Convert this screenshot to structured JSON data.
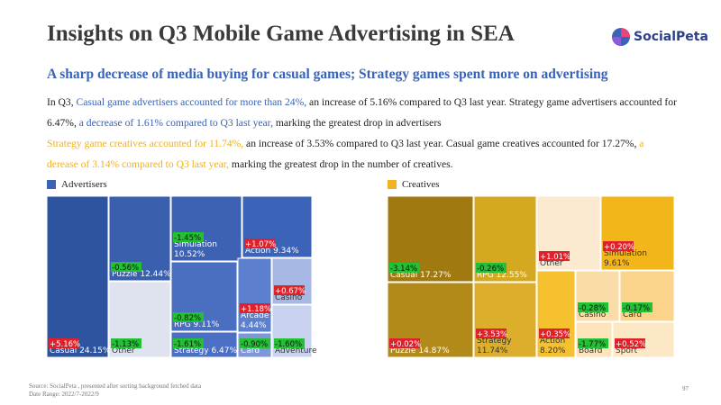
{
  "header": {
    "title": "Insights on Q3 Mobile Game Advertising in SEA",
    "logo": "SocialPeta"
  },
  "subtitle": "A sharp decrease of media buying for casual games; Strategy games spent more on advertising",
  "paragraph": [
    {
      "text": "In Q3, ",
      "color": "#222222"
    },
    {
      "text": "Casual game advertisers accounted for more than 24%,",
      "color": "#3a63b6"
    },
    {
      "text": " an increase of 5.16% compared to Q3 last year. Strategy game advertisers accounted for 6.47%, ",
      "color": "#222222"
    },
    {
      "text": "a decrease of 1.61% compared to Q3 last year,",
      "color": "#3a63b6"
    },
    {
      "text": " marking the greatest drop in advertisers",
      "color": "#222222"
    },
    {
      "text": "Strategy game creatives accounted for 11.74%,",
      "color": "#f0b21e"
    },
    {
      "text": " an increase of 3.53% compared to Q3 last year. Casual game creatives accounted for 17.27%, ",
      "color": "#222222"
    },
    {
      "text": "a derease of 3.14% compared to Q3 last year,",
      "color": "#f0b21e"
    },
    {
      "text": " marking the greatest drop in the number of creatives.",
      "color": "#222222"
    }
  ],
  "chart_data": [
    {
      "type": "treemap",
      "legend": "Advertisers",
      "color": "#3a63b6",
      "categories": [
        "Casual",
        "Puzzle",
        "Other",
        "Simulation",
        "Action",
        "RPG",
        "Strategy",
        "Arcade",
        "Casino",
        "Card",
        "Adventure"
      ],
      "values": [
        24.15,
        12.44,
        11.3,
        10.52,
        9.34,
        9.11,
        6.47,
        4.44,
        3.3,
        2.2,
        3.7
      ],
      "value_labels": [
        "24.15%",
        "12.44%",
        null,
        "10.52%",
        "9.34%",
        "9.11%",
        "6.47%",
        "4.44%",
        null,
        null,
        null
      ],
      "changes": [
        5.16,
        -0.56,
        -1.13,
        -1.45,
        1.07,
        -0.82,
        -1.61,
        1.18,
        0.67,
        -0.9,
        -1.6
      ],
      "change_labels": [
        "+5.16%",
        "-0.56%",
        "-1.13%",
        "-1.45%",
        "+1.07%",
        "-0.82%",
        "-1.61%",
        "+1.18%",
        "+0.67%",
        "-0.90%",
        "-1.60%"
      ],
      "colors": [
        "#2e54a0",
        "#3a5fae",
        "#dfe3f0",
        "#3d62b3",
        "#3b63b8",
        "#4a6fc0",
        "#4a6fc4",
        "#5c7fcf",
        "#a7b8e4",
        "#7d97d8",
        "#c9d3ef"
      ]
    },
    {
      "type": "treemap",
      "legend": "Creatives",
      "color": "#f0b21e",
      "categories": [
        "Casual",
        "Puzzle",
        "RPG",
        "Strategy",
        "Other",
        "Simulation",
        "Action",
        "Casino",
        "Card",
        "Board",
        "Sport"
      ],
      "values": [
        17.27,
        14.87,
        12.55,
        11.74,
        10.0,
        9.61,
        8.2,
        4.5,
        5.7,
        2.7,
        4.6
      ],
      "value_labels": [
        "17.27%",
        "14.87%",
        "12.55%",
        "11.74%",
        null,
        "9.61%",
        "8.20%",
        null,
        null,
        null,
        null
      ],
      "changes": [
        -3.14,
        0.02,
        -0.26,
        3.53,
        1.01,
        0.2,
        0.35,
        -0.28,
        -0.17,
        -1.77,
        0.52
      ],
      "change_labels": [
        "-3.14%",
        "+0.02%",
        "-0.26%",
        "+3.53%",
        "+1.01%",
        "+0.20%",
        "+0.35%",
        "-0.28%",
        "-0.17%",
        "-1.77%",
        "+0.52%"
      ],
      "colors": [
        "#a07a10",
        "#b18a1a",
        "#d4a820",
        "#dcae2b",
        "#fbe9d0",
        "#f2b61a",
        "#f6c12e",
        "#f9dca7",
        "#fbd48b",
        "#fde4bb",
        "#fde8c6"
      ]
    }
  ],
  "footer": {
    "source": "Source: SocialPeta , presented after sorting background fetched data",
    "range": "Date Range: 2022/7-2022/9",
    "page": "97"
  }
}
